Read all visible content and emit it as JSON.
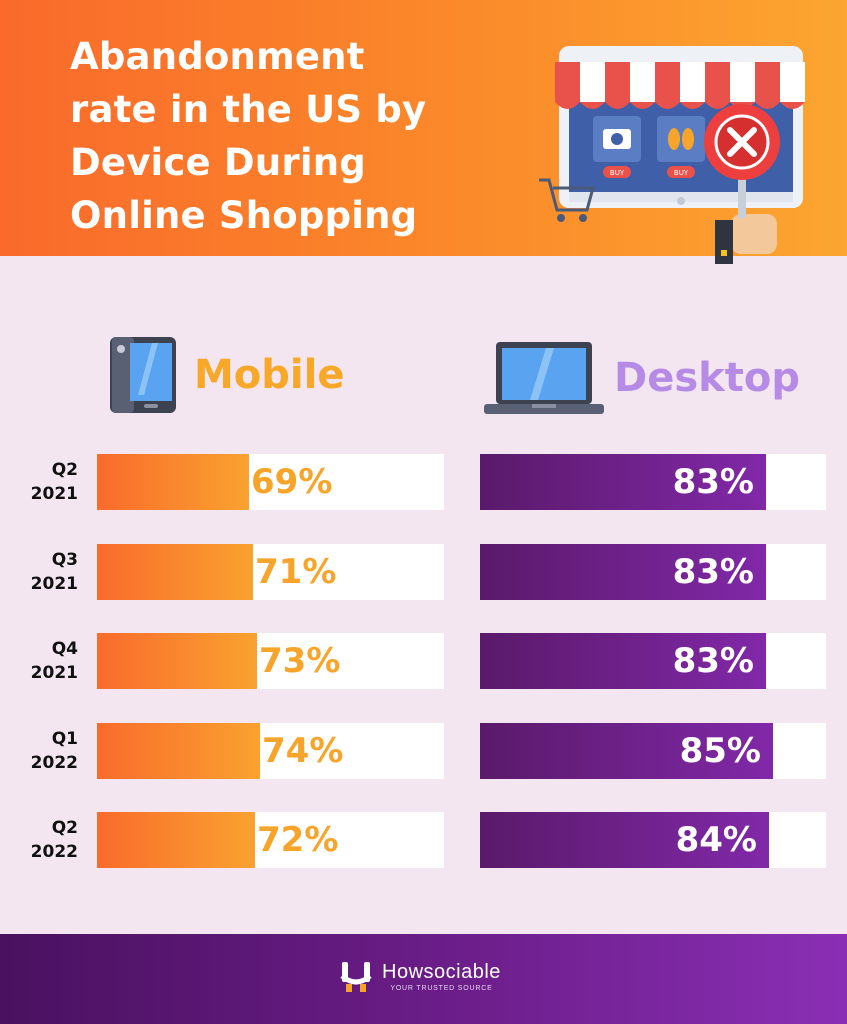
{
  "title": "Abandonment\nrate in the US by\nDevice During\nOnline Shopping",
  "illustration": {
    "buy_left": "BUY",
    "buy_right": "BUY",
    "icon": "online-store-cancel-icon"
  },
  "colors": {
    "header_start": "#f96a2b",
    "header_end": "#fca530",
    "background": "#f3e6f1",
    "mobile": "#f8a829",
    "desktop_label": "#b58be6",
    "desktop_bar": "#6a1f8a",
    "footer": "#6c1e8a"
  },
  "chart_data": {
    "type": "bar",
    "orientation": "horizontal",
    "categories": [
      "Q2\n2021",
      "Q3\n2021",
      "Q4\n2021",
      "Q1\n2022",
      "Q2\n2022"
    ],
    "series": [
      {
        "name": "Mobile",
        "icon": "smartphone-icon",
        "values": [
          69,
          71,
          73,
          74,
          72
        ],
        "labels": [
          "69%",
          "71%",
          "73%",
          "74%",
          "72%"
        ]
      },
      {
        "name": "Desktop",
        "icon": "laptop-icon",
        "values": [
          83,
          83,
          83,
          85,
          84
        ],
        "labels": [
          "83%",
          "83%",
          "83%",
          "85%",
          "84%"
        ]
      }
    ],
    "unit": "%",
    "xlim": [
      0,
      100
    ],
    "grid": false
  },
  "footer": {
    "brand": "Howsociable",
    "tagline": "YOUR TRUSTED SOURCE",
    "logo_icon": "howsociable-logo-icon"
  }
}
